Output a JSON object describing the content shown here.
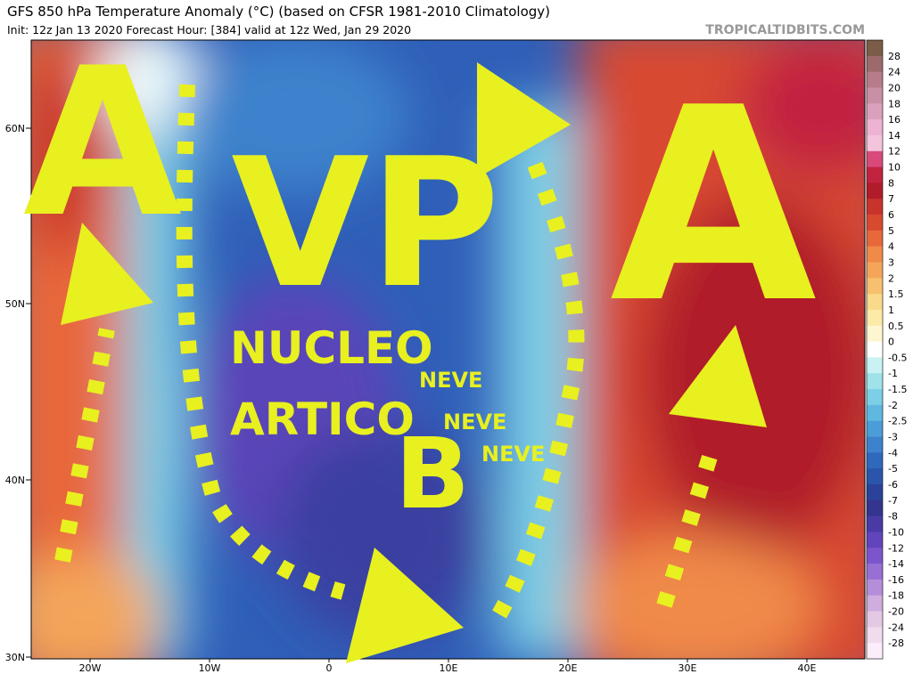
{
  "header": {
    "title": "GFS 850 hPa Temperature Anomaly (°C) (based on CFSR 1981-2010 Climatology)",
    "subtitle": "Init: 12z Jan 13 2020   Forecast Hour: [384]   valid at 12z Wed, Jan 29 2020",
    "site": "TROPICALTIDBITS.COM"
  },
  "map": {
    "lat_labels": [
      "60N",
      "50N",
      "40N",
      "30N"
    ],
    "lon_labels": [
      "20W",
      "10W",
      "0",
      "10E",
      "20E",
      "30E",
      "40E"
    ]
  },
  "annotations": {
    "big": [
      "A",
      "VP",
      "A",
      "B"
    ],
    "words": [
      "NUCLEO",
      "ARTICO"
    ],
    "snow": [
      "NEVE",
      "NEVE",
      "NEVE"
    ]
  },
  "colorbar": {
    "labels": [
      "28",
      "24",
      "20",
      "18",
      "16",
      "14",
      "12",
      "10",
      "8",
      "7",
      "6",
      "5",
      "4",
      "3",
      "2",
      "1.5",
      "1",
      "0.5",
      "0",
      "-0.5",
      "-1",
      "-1.5",
      "-2",
      "-2.5",
      "-3",
      "-4",
      "-5",
      "-6",
      "-7",
      "-8",
      "-10",
      "-12",
      "-14",
      "-16",
      "-18",
      "-20",
      "-24",
      "-28"
    ],
    "colors": [
      "#7a5c48",
      "#9c6a6a",
      "#b77c8a",
      "#c98fa5",
      "#dba0bc",
      "#eeb3d2",
      "#f4c4dc",
      "#d9497a",
      "#c2233f",
      "#b01c2a",
      "#c8332c",
      "#d84a30",
      "#e8683a",
      "#f08a48",
      "#f4a55a",
      "#f7c070",
      "#f9d98a",
      "#fbeaa8",
      "#fdf6d0",
      "#ffffff",
      "#c8f2f4",
      "#9fe2ea",
      "#7ccfe6",
      "#5fb8e0",
      "#4b9dd8",
      "#3d82cc",
      "#3068bc",
      "#2a55aa",
      "#2a4298",
      "#33358e",
      "#4a3aa6",
      "#6244bc",
      "#7c55cc",
      "#9870d4",
      "#b48ed8",
      "#cfadde",
      "#e4c8e4",
      "#f1dcee",
      "#fbeefa"
    ]
  }
}
